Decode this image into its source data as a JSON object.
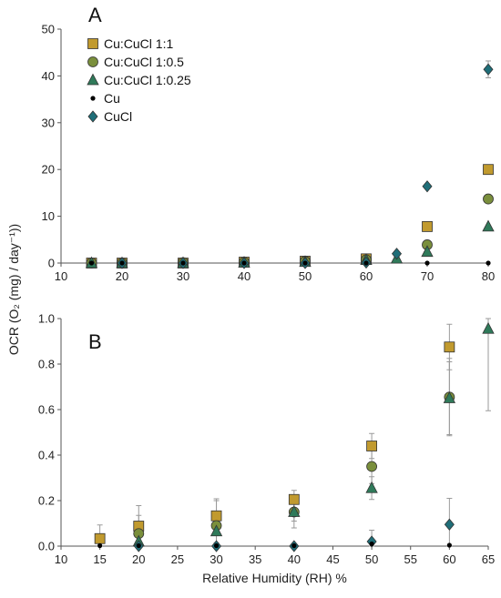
{
  "chart_data": [
    {
      "panel": "A",
      "type": "scatter",
      "xlim": [
        10,
        80
      ],
      "ylim": [
        0,
        50
      ],
      "xticks": [
        10,
        20,
        30,
        40,
        50,
        60,
        70,
        80
      ],
      "yticks": [
        0,
        10,
        20,
        30,
        40,
        50
      ],
      "legend_position": "top-left",
      "series": [
        {
          "name": "Cu:CuCl 1:1",
          "marker": "square",
          "color": "#C19A2E",
          "points": [
            {
              "x": 15,
              "y": 0
            },
            {
              "x": 20,
              "y": 0
            },
            {
              "x": 30,
              "y": 0
            },
            {
              "x": 40,
              "y": 0.2
            },
            {
              "x": 50,
              "y": 0.4
            },
            {
              "x": 60,
              "y": 0.9
            },
            {
              "x": 70,
              "y": 7.8
            },
            {
              "x": 80,
              "y": 20
            }
          ]
        },
        {
          "name": "Cu:CuCl 1:0.5",
          "marker": "circle",
          "color": "#7A8F3C",
          "points": [
            {
              "x": 15,
              "y": 0
            },
            {
              "x": 20,
              "y": 0
            },
            {
              "x": 30,
              "y": 0.1
            },
            {
              "x": 40,
              "y": 0.15
            },
            {
              "x": 50,
              "y": 0.35
            },
            {
              "x": 60,
              "y": 0.7
            },
            {
              "x": 70,
              "y": 3.9
            },
            {
              "x": 80,
              "y": 13.7
            }
          ]
        },
        {
          "name": "Cu:CuCl 1:0.25",
          "marker": "triangle",
          "color": "#2F7A5A",
          "points": [
            {
              "x": 15,
              "y": 0
            },
            {
              "x": 20,
              "y": 0
            },
            {
              "x": 30,
              "y": 0
            },
            {
              "x": 40,
              "y": 0.1
            },
            {
              "x": 50,
              "y": 0.25
            },
            {
              "x": 60,
              "y": 0.65
            },
            {
              "x": 65,
              "y": 0.95
            },
            {
              "x": 70,
              "y": 2.4
            },
            {
              "x": 80,
              "y": 7.8
            }
          ]
        },
        {
          "name": "Cu",
          "marker": "dot",
          "color": "#000000",
          "points": [
            {
              "x": 15,
              "y": 0
            },
            {
              "x": 20,
              "y": 0
            },
            {
              "x": 30,
              "y": 0
            },
            {
              "x": 40,
              "y": 0
            },
            {
              "x": 50,
              "y": 0
            },
            {
              "x": 60,
              "y": 0
            },
            {
              "x": 70,
              "y": 0
            },
            {
              "x": 80,
              "y": 0
            }
          ]
        },
        {
          "name": "CuCl",
          "marker": "diamond",
          "color": "#1F6E78",
          "points": [
            {
              "x": 20,
              "y": 0
            },
            {
              "x": 30,
              "y": 0
            },
            {
              "x": 40,
              "y": 0
            },
            {
              "x": 50,
              "y": 0
            },
            {
              "x": 60,
              "y": 0.1
            },
            {
              "x": 65,
              "y": 2.0
            },
            {
              "x": 70,
              "y": 16.4
            },
            {
              "x": 80,
              "y": 41.4,
              "err": 1.8
            }
          ]
        }
      ]
    },
    {
      "panel": "B",
      "type": "scatter",
      "xlabel": "Relative Humidity (RH) %",
      "xlim": [
        10,
        65
      ],
      "ylim": [
        0,
        1.0
      ],
      "xticks": [
        10,
        15,
        20,
        25,
        30,
        35,
        40,
        45,
        50,
        55,
        60,
        65
      ],
      "yticks": [
        "0.0",
        "0.2",
        "0.4",
        "0.6",
        "0.8",
        "1.0"
      ],
      "series": [
        {
          "name": "Cu:CuCl 1:1",
          "marker": "square",
          "color": "#C19A2E",
          "points": [
            {
              "x": 15,
              "y": 0.033,
              "err": 0.06
            },
            {
              "x": 20,
              "y": 0.088,
              "err": 0.09
            },
            {
              "x": 30,
              "y": 0.133,
              "err": 0.075
            },
            {
              "x": 40,
              "y": 0.205,
              "err": 0.04
            },
            {
              "x": 50,
              "y": 0.44,
              "err": 0.055
            },
            {
              "x": 60,
              "y": 0.875,
              "err": 0.1
            }
          ]
        },
        {
          "name": "Cu:CuCl 1:0.5",
          "marker": "circle",
          "color": "#7A8F3C",
          "points": [
            {
              "x": 20,
              "y": 0.055,
              "err": 0.08
            },
            {
              "x": 30,
              "y": 0.09,
              "err": 0.11
            },
            {
              "x": 40,
              "y": 0.15,
              "err": 0.07
            },
            {
              "x": 50,
              "y": 0.35,
              "err": 0.075
            },
            {
              "x": 60,
              "y": 0.655,
              "err": 0.17
            }
          ]
        },
        {
          "name": "Cu:CuCl 1:0.25",
          "marker": "triangle",
          "color": "#2F7A5A",
          "points": [
            {
              "x": 20,
              "y": 0.02,
              "err": 0.02
            },
            {
              "x": 30,
              "y": 0.065,
              "err": 0.05
            },
            {
              "x": 40,
              "y": 0.15,
              "err": 0.04
            },
            {
              "x": 50,
              "y": 0.255,
              "err": 0.05
            },
            {
              "x": 60,
              "y": 0.65,
              "err": 0.16
            },
            {
              "x": 65,
              "y": 0.955,
              "err": 0.36
            }
          ]
        },
        {
          "name": "Cu",
          "marker": "dot",
          "color": "#000000",
          "points": [
            {
              "x": 15,
              "y": 0.002
            },
            {
              "x": 20,
              "y": 0.002
            },
            {
              "x": 30,
              "y": 0.002
            },
            {
              "x": 40,
              "y": 0.002
            },
            {
              "x": 50,
              "y": 0.01
            },
            {
              "x": 60,
              "y": 0.004
            }
          ]
        },
        {
          "name": "CuCl",
          "marker": "diamond",
          "color": "#1F6E78",
          "points": [
            {
              "x": 20,
              "y": 0.0
            },
            {
              "x": 30,
              "y": 0.0
            },
            {
              "x": 40,
              "y": 0.0
            },
            {
              "x": 50,
              "y": 0.02,
              "err": 0.05
            },
            {
              "x": 60,
              "y": 0.095,
              "err": 0.115
            }
          ]
        }
      ]
    }
  ],
  "shared_ylabel": "OCR (O₂ (mg) / day⁻¹))"
}
